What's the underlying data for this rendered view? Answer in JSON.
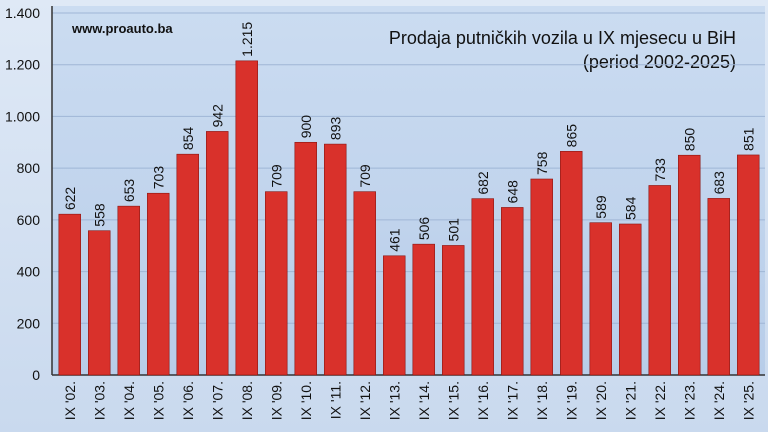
{
  "chart_data": {
    "type": "bar",
    "title": "Prodaja putničkih vozila u IX mjesecu u BiH",
    "subtitle": "(period 2002-2025)",
    "source": "www.proauto.ba",
    "categories": [
      "IX '02.",
      "IX '03.",
      "IX '04.",
      "IX '05.",
      "IX '06.",
      "IX '07.",
      "IX '08.",
      "IX '09.",
      "IX '10.",
      "IX '11.",
      "IX '12.",
      "IX '13.",
      "IX '14.",
      "IX '15.",
      "IX '16.",
      "IX '17.",
      "IX '18.",
      "IX '19.",
      "IX '20.",
      "IX '21.",
      "IX '22.",
      "IX '23.",
      "IX '24.",
      "IX '25."
    ],
    "values": [
      622,
      558,
      653,
      703,
      854,
      942,
      1215,
      709,
      900,
      893,
      709,
      461,
      506,
      501,
      682,
      648,
      758,
      865,
      589,
      584,
      733,
      850,
      683,
      851
    ],
    "value_labels": [
      "622",
      "558",
      "653",
      "703",
      "854",
      "942",
      "1.215",
      "709",
      "900",
      "893",
      "709",
      "461",
      "506",
      "501",
      "682",
      "648",
      "758",
      "865",
      "589",
      "584",
      "733",
      "850",
      "683",
      "851"
    ],
    "color": "#d9312b",
    "ylim": [
      0,
      1400
    ],
    "yticks": [
      0,
      200,
      400,
      600,
      800,
      {
        "value": 1000,
        "label": "1.000"
      },
      {
        "value": 1200,
        "label": "1.200"
      },
      {
        "value": 1400,
        "label": "1.400"
      }
    ],
    "grid": true
  }
}
